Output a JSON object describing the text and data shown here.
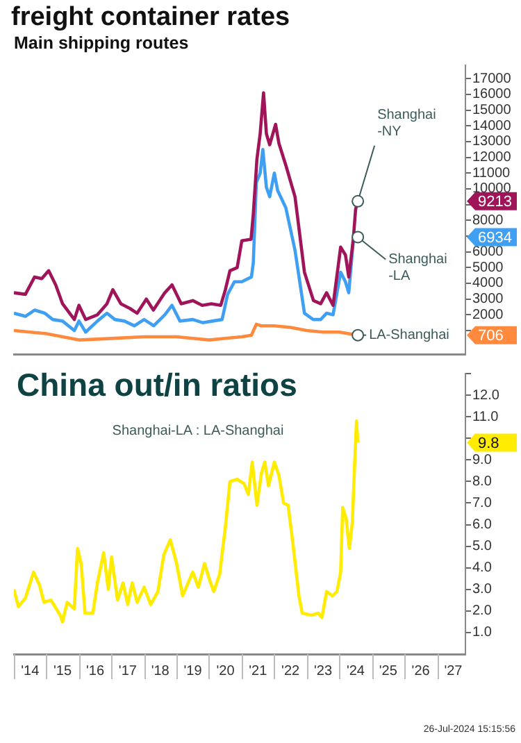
{
  "chart_data": [
    {
      "type": "line",
      "title": "freight container rates",
      "subtitle": "Main shipping routes",
      "xlim": [
        "2014-01-01",
        "2027-11-15"
      ],
      "ylim": [
        -500,
        17850
      ],
      "yticks": [
        {
          "value": 1000,
          "label": null
        },
        2000,
        3000,
        4000,
        5000,
        6000,
        {
          "value": 7000,
          "label": null
        },
        8000,
        {
          "value": 9000,
          "label": null
        },
        10000,
        11000,
        12000,
        13000,
        14000,
        15000,
        16000,
        17000
      ],
      "tick_labels": "y",
      "grid": false,
      "legend": "bottom right",
      "marker": "none",
      "series": [
        {
          "name": "Shanghai-NY",
          "color": "#a0155a",
          "x": [
            "2014-01-01",
            "2014-05-10",
            "2014-08-21",
            "2014-11-10",
            "2015-01-26",
            "2015-04-15",
            "2015-07-01",
            "2015-11-10",
            "2016-01-01",
            "2016-03-16",
            "2016-07-26",
            "2016-11-10",
            "2017-01-15",
            "2017-04-15",
            "2017-07-26",
            "2017-10-15",
            "2018-01-26",
            "2018-04-15",
            "2018-08-21",
            "2018-11-10",
            "2019-02-21",
            "2019-07-01",
            "2019-10-15",
            "2020-01-26",
            "2020-05-10",
            "2020-07-01",
            "2020-08-21",
            "2020-11-10",
            "2021-01-01",
            "2021-04-15",
            "2021-05-10",
            "2021-06-20",
            "2021-07-26",
            "2021-09-02",
            "2021-10-04",
            "2021-11-10",
            "2022-01-15",
            "2022-02-21",
            "2022-05-10",
            "2022-08-21",
            "2022-12-05",
            "2023-03-16",
            "2023-06-05",
            "2023-08-10",
            "2023-10-22",
            "2024-01-15",
            "2024-03-09",
            "2024-04-15",
            "2024-06-05",
            "2024-07-01",
            "2024-07-26"
          ],
          "values": [
            3400,
            3300,
            4400,
            4300,
            4800,
            3900,
            2700,
            1700,
            2600,
            1700,
            2000,
            2700,
            3600,
            2700,
            2400,
            2100,
            3000,
            2300,
            3400,
            3900,
            2700,
            2900,
            2600,
            2700,
            2600,
            3600,
            4800,
            5000,
            6700,
            6800,
            8400,
            11900,
            13500,
            16100,
            13500,
            12800,
            14100,
            12900,
            11500,
            9500,
            4700,
            2900,
            2700,
            3400,
            2600,
            6300,
            5800,
            4400,
            6800,
            8700,
            9213
          ]
        },
        {
          "name": "Shanghai-LA",
          "color": "#3f9ff2",
          "x": [
            "2014-01-01",
            "2014-05-10",
            "2014-08-21",
            "2014-12-13",
            "2015-03-13",
            "2015-07-01",
            "2015-11-10",
            "2016-01-01",
            "2016-03-16",
            "2016-07-26",
            "2016-11-10",
            "2017-02-07",
            "2017-05-25",
            "2017-09-13",
            "2018-01-01",
            "2018-04-19",
            "2018-08-21",
            "2018-11-10",
            "2019-02-07",
            "2019-07-01",
            "2019-10-19",
            "2020-02-07",
            "2020-05-25",
            "2020-07-26",
            "2020-10-11",
            "2021-01-01",
            "2021-04-19",
            "2021-05-10",
            "2021-06-13",
            "2021-07-26",
            "2021-08-25",
            "2021-10-04",
            "2021-11-10",
            "2022-01-01",
            "2022-02-07",
            "2022-05-10",
            "2022-08-21",
            "2022-12-05",
            "2023-03-13",
            "2023-06-05",
            "2023-08-10",
            "2023-10-22",
            "2024-01-15",
            "2024-03-09",
            "2024-04-15",
            "2024-06-05",
            "2024-07-26"
          ],
          "values": [
            2100,
            1900,
            2300,
            2100,
            1700,
            1600,
            1000,
            1600,
            900,
            1600,
            2100,
            1700,
            1600,
            1300,
            1700,
            1300,
            2000,
            2600,
            1600,
            1700,
            1500,
            1600,
            1700,
            3300,
            4100,
            4100,
            4400,
            5300,
            10400,
            11000,
            12500,
            10100,
            9500,
            11000,
            9900,
            8800,
            6100,
            2100,
            1700,
            1700,
            2100,
            2000,
            4700,
            4100,
            3400,
            6700,
            6934
          ]
        },
        {
          "name": "LA-Shanghai",
          "color": "#ff8a3d",
          "x": [
            "2014-01-01",
            "2014-07-01",
            "2015-01-01",
            "2015-07-01",
            "2016-01-01",
            "2017-01-01",
            "2018-01-01",
            "2019-01-01",
            "2019-07-01",
            "2020-01-01",
            "2020-07-01",
            "2021-01-01",
            "2021-04-19",
            "2021-06-13",
            "2021-08-07",
            "2022-01-01",
            "2022-07-01",
            "2023-01-01",
            "2023-07-01",
            "2024-01-01",
            "2024-07-26"
          ],
          "values": [
            1000,
            900,
            800,
            600,
            400,
            500,
            600,
            600,
            500,
            400,
            500,
            600,
            700,
            1400,
            1300,
            1300,
            1200,
            1000,
            900,
            900,
            706
          ]
        }
      ],
      "annotations": [
        "9213",
        "6934",
        "706"
      ]
    },
    {
      "type": "line",
      "title": "China out/in ratios",
      "xlim": [
        "2014-01-01",
        "2027-11-15"
      ],
      "ylim": [
        0,
        13
      ],
      "xticks": [
        {
          "value": "2014-07-01",
          "label": "'14"
        },
        {
          "value": "2015-07-01",
          "label": "'15"
        },
        {
          "value": "2016-07-01",
          "label": "'16"
        },
        {
          "value": "2017-07-01",
          "label": "'17"
        },
        {
          "value": "2018-07-01",
          "label": "'18"
        },
        {
          "value": "2019-07-01",
          "label": "'19"
        },
        {
          "value": "2020-07-01",
          "label": "'20"
        },
        {
          "value": "2021-07-01",
          "label": "'21"
        },
        {
          "value": "2022-07-01",
          "label": "'22"
        },
        {
          "value": "2023-07-01",
          "label": "'23"
        },
        {
          "value": "2024-07-01",
          "label": "'24"
        },
        {
          "value": "2025-07-01",
          "label": "'25"
        },
        {
          "value": "2026-07-01",
          "label": "'26"
        },
        {
          "value": "2027-07-01",
          "label": "'27"
        }
      ],
      "yticks": [
        {
          "value": 1,
          "label": "1.0"
        },
        {
          "value": 2,
          "label": "2.0"
        },
        {
          "value": 3,
          "label": "3.0"
        },
        {
          "value": 4,
          "label": "4.0"
        },
        {
          "value": 5,
          "label": "5.0"
        },
        {
          "value": 6,
          "label": "6.0"
        },
        {
          "value": 7,
          "label": "7.0"
        },
        {
          "value": 8,
          "label": "8.0"
        },
        {
          "value": 9,
          "label": "9.0"
        },
        {
          "value": 10,
          "label": null
        },
        {
          "value": 11,
          "label": "11.0"
        },
        {
          "value": 12,
          "label": "12.0"
        },
        {
          "value": 13,
          "label": null
        }
      ],
      "grid": false,
      "legend": "top",
      "marker": "none",
      "series": [
        {
          "name": "Shanghai-LA : LA-Shanghai",
          "color": "#ffec00",
          "x": [
            "2014-01-01",
            "2014-02-21",
            "2014-05-10",
            "2014-08-10",
            "2014-10-15",
            "2014-12-05",
            "2015-02-21",
            "2015-06-05",
            "2015-07-01",
            "2015-08-21",
            "2015-11-10",
            "2015-12-16",
            "2016-01-26",
            "2016-03-09",
            "2016-06-05",
            "2016-07-26",
            "2016-10-04",
            "2016-11-25",
            "2017-01-01",
            "2017-03-09",
            "2017-05-10",
            "2017-07-01",
            "2017-08-21",
            "2017-10-15",
            "2018-01-01",
            "2018-03-16",
            "2018-06-05",
            "2018-08-10",
            "2018-10-22",
            "2019-01-01",
            "2019-03-09",
            "2019-05-10",
            "2019-07-01",
            "2019-09-02",
            "2019-11-10",
            "2020-01-01",
            "2020-02-21",
            "2020-04-28",
            "2020-07-01",
            "2020-08-21",
            "2020-11-10",
            "2021-01-26",
            "2021-03-16",
            "2021-04-28",
            "2021-06-20",
            "2021-08-10",
            "2021-09-16",
            "2021-10-28",
            "2022-01-01",
            "2022-02-21",
            "2022-04-15",
            "2022-06-05",
            "2022-07-26",
            "2022-10-04",
            "2022-11-10",
            "2023-02-21",
            "2023-05-10",
            "2023-06-20",
            "2023-08-10",
            "2023-10-15",
            "2023-12-05",
            "2024-01-15",
            "2024-02-07",
            "2024-03-16",
            "2024-04-22",
            "2024-05-25",
            "2024-06-20",
            "2024-07-11",
            "2024-07-26"
          ],
          "values": [
            3.0,
            2.2,
            2.6,
            3.8,
            3.2,
            2.4,
            2.5,
            1.8,
            1.5,
            2.4,
            2.1,
            4.9,
            4.2,
            1.9,
            1.9,
            3.3,
            4.7,
            3.0,
            4.5,
            2.5,
            3.3,
            2.3,
            3.3,
            2.4,
            3.1,
            2.3,
            2.9,
            4.6,
            5.3,
            4.2,
            2.7,
            3.3,
            3.8,
            3.1,
            4.2,
            3.5,
            2.9,
            3.7,
            5.9,
            8.0,
            8.1,
            7.9,
            7.4,
            8.9,
            6.9,
            8.4,
            8.9,
            7.8,
            8.9,
            8.3,
            7.0,
            6.9,
            5.2,
            2.7,
            1.9,
            1.8,
            1.9,
            1.7,
            2.9,
            2.7,
            2.9,
            3.8,
            6.8,
            6.3,
            4.9,
            6.1,
            8.8,
            10.8,
            9.8
          ]
        }
      ],
      "annotations": [
        "9.8",
        "26-Jul-2024 15:15:56"
      ]
    }
  ]
}
